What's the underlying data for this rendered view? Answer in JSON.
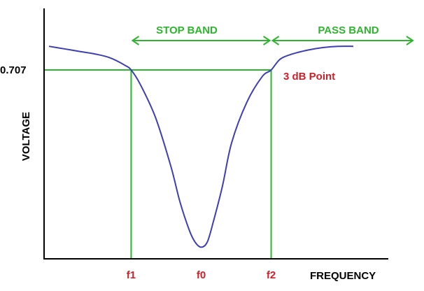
{
  "chart_data": {
    "type": "line",
    "title": "",
    "xlabel": "FREQUENCY",
    "ylabel": "VOLTAGE",
    "x_ticks": [
      {
        "label": "f1",
        "value": 0.27
      },
      {
        "label": "f0",
        "value": 0.5
      },
      {
        "label": "f2",
        "value": 0.73
      }
    ],
    "y_ticks": [
      {
        "label": "0.707",
        "value": 0.707
      }
    ],
    "xlim": [
      0,
      1
    ],
    "ylim": [
      0,
      1
    ],
    "grid": false,
    "series": [
      {
        "x": [
          0.0,
          0.05,
          0.1,
          0.15,
          0.2,
          0.25,
          0.27,
          0.3,
          0.35,
          0.4,
          0.43,
          0.46,
          0.48,
          0.5,
          0.52,
          0.54,
          0.57,
          0.6,
          0.65,
          0.7,
          0.73,
          0.76,
          0.8,
          0.85,
          0.9,
          0.95,
          1.0
        ],
        "y": [
          0.8,
          0.79,
          0.78,
          0.77,
          0.755,
          0.725,
          0.707,
          0.65,
          0.52,
          0.33,
          0.19,
          0.08,
          0.03,
          0.01,
          0.03,
          0.11,
          0.25,
          0.42,
          0.58,
          0.68,
          0.707,
          0.75,
          0.77,
          0.785,
          0.795,
          0.8,
          0.8
        ]
      }
    ],
    "annotations": {
      "stop_band": {
        "label": "STOP BAND",
        "from": 0.27,
        "to": 0.73
      },
      "pass_band": {
        "label": "PASS BAND",
        "from": 0.73,
        "to": 1.2
      },
      "point": {
        "label": "3 dB Point",
        "x": 0.73,
        "y": 0.707
      }
    },
    "colors": {
      "curve": "#3f3fb5",
      "guides": "#2db52d",
      "axis": "#000000",
      "tick_labels": "#cc1f2a",
      "point_label": "#cc1f2a",
      "band_labels": "#2db52d"
    }
  }
}
